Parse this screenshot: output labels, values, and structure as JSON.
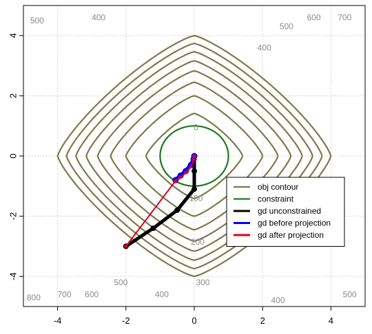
{
  "chart_data": {
    "type": "line",
    "title": "",
    "xlabel": "",
    "ylabel": "",
    "xlim": [
      -5,
      5
    ],
    "ylim": [
      -5,
      5
    ],
    "x_ticks": [
      -4,
      -2,
      0,
      2,
      4
    ],
    "y_ticks": [
      -4,
      -2,
      0,
      2,
      4
    ],
    "grid": true,
    "legend_position": "right",
    "contour_levels": [
      100,
      200,
      300,
      400,
      500,
      600,
      700,
      800
    ],
    "contour_labels": [
      {
        "text": "0",
        "x": 0.05,
        "y": 0.95
      },
      {
        "text": "500",
        "x": -4.6,
        "y": 4.5
      },
      {
        "text": "400",
        "x": -2.8,
        "y": 4.6
      },
      {
        "text": "500",
        "x": 2.7,
        "y": 4.3
      },
      {
        "text": "600",
        "x": 3.5,
        "y": 4.6
      },
      {
        "text": "700",
        "x": 4.4,
        "y": 4.6
      },
      {
        "text": "400",
        "x": 2.05,
        "y": 3.6
      },
      {
        "text": "100",
        "x": 0.05,
        "y": -1.4
      },
      {
        "text": "200",
        "x": 0.1,
        "y": -2.85
      },
      {
        "text": "300",
        "x": 0.25,
        "y": -4.2
      },
      {
        "text": "800",
        "x": -4.7,
        "y": -4.7
      },
      {
        "text": "700",
        "x": -3.8,
        "y": -4.6
      },
      {
        "text": "600",
        "x": -3.0,
        "y": -4.6
      },
      {
        "text": "500",
        "x": -2.15,
        "y": -4.2
      },
      {
        "text": "400",
        "x": -0.95,
        "y": -4.6
      },
      {
        "text": "400",
        "x": 2.45,
        "y": -4.8
      },
      {
        "text": "500",
        "x": 4.55,
        "y": -4.6
      }
    ],
    "constraint": {
      "center": [
        0,
        0
      ],
      "radius": 1
    },
    "series": [
      {
        "name": "obj contour",
        "color": "#7a7a4a",
        "kind": "contour"
      },
      {
        "name": "constraint",
        "color": "#1e7a1e",
        "kind": "circle"
      },
      {
        "name": "gd unconstrained",
        "color": "#000000",
        "kind": "path",
        "x": [
          -2,
          -1.2,
          -0.5,
          0,
          0,
          0
        ],
        "y": [
          -3,
          -2.4,
          -1.8,
          -1.1,
          -0.5,
          0
        ]
      },
      {
        "name": "gd before projection",
        "color": "#0000ff",
        "kind": "path",
        "x": [
          -0.55,
          -0.4,
          -0.25,
          -0.1,
          -0.02,
          0
        ],
        "y": [
          -0.8,
          -0.65,
          -0.5,
          -0.3,
          -0.1,
          0
        ]
      },
      {
        "name": "gd after projection",
        "color": "#e0001a",
        "kind": "path",
        "x": [
          -2,
          -0.55,
          -0.4,
          -0.25,
          -0.1,
          -0.02,
          0
        ],
        "y": [
          -3,
          -0.83,
          -0.7,
          -0.55,
          -0.35,
          -0.12,
          0
        ]
      }
    ]
  }
}
